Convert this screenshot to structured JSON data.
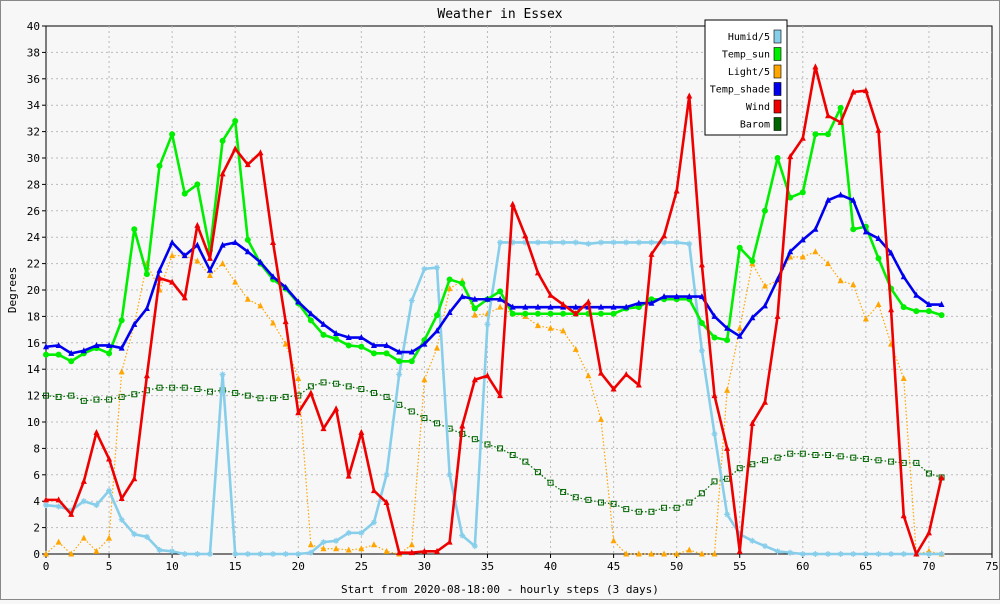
{
  "chart_data": {
    "type": "line",
    "title": "Weather in Essex",
    "xlabel": "Start from 2020-08-18:00 - hourly steps (3 days)",
    "ylabel": "Degrees",
    "xlim": [
      0,
      75
    ],
    "ylim": [
      0,
      40
    ],
    "x_ticks": [
      "0",
      "5",
      "10",
      "15",
      "20",
      "25",
      "30",
      "35",
      "40",
      "45",
      "50",
      "55",
      "60",
      "65",
      "70",
      "75"
    ],
    "y_ticks": [
      "0",
      "2",
      "4",
      "6",
      "8",
      "10",
      "12",
      "14",
      "16",
      "18",
      "20",
      "22",
      "24",
      "26",
      "28",
      "30",
      "32",
      "34",
      "36",
      "38",
      "40"
    ],
    "grid": true,
    "legend_position": "top-right",
    "x": [
      0,
      1,
      2,
      3,
      4,
      5,
      6,
      7,
      8,
      9,
      10,
      11,
      12,
      13,
      14,
      15,
      16,
      17,
      18,
      19,
      20,
      21,
      22,
      23,
      24,
      25,
      26,
      27,
      28,
      29,
      30,
      31,
      32,
      33,
      34,
      35,
      36,
      37,
      38,
      39,
      40,
      41,
      42,
      43,
      44,
      45,
      46,
      47,
      48,
      49,
      50,
      51,
      52,
      53,
      54,
      55,
      56,
      57,
      58,
      59,
      60,
      61,
      62,
      63,
      64,
      65,
      66,
      67,
      68,
      69,
      70,
      71
    ],
    "series": [
      {
        "name": "Humid/5",
        "color": "#87ceeb",
        "marker": "star",
        "dotted": false,
        "values": [
          3.7,
          3.6,
          3.3,
          4.0,
          3.7,
          4.8,
          2.6,
          1.5,
          1.3,
          0.3,
          0.2,
          0.0,
          0.0,
          0.0,
          13.6,
          0.0,
          0.0,
          0.0,
          0.0,
          0.0,
          0.0,
          0.1,
          0.9,
          1.0,
          1.6,
          1.6,
          2.4,
          6.0,
          13.6,
          19.2,
          21.6,
          21.7,
          6.0,
          1.4,
          0.6,
          17.4,
          23.6,
          23.6,
          23.6,
          23.6,
          23.6,
          23.6,
          23.6,
          23.5,
          23.6,
          23.6,
          23.6,
          23.6,
          23.6,
          23.6,
          23.6,
          23.5,
          15.4,
          9.1,
          3.0,
          1.5,
          1.0,
          0.6,
          0.2,
          0.1,
          0.0,
          0.0,
          0.0,
          0.0,
          0.0,
          0.0,
          0.0,
          0.0,
          0.0,
          0.0,
          0.0,
          0.0
        ]
      },
      {
        "name": "Temp_sun",
        "color": "#00ee00",
        "marker": "circle",
        "dotted": false,
        "values": [
          15.1,
          15.1,
          14.6,
          15.2,
          15.6,
          15.2,
          17.7,
          24.6,
          21.2,
          29.4,
          31.8,
          27.3,
          28.0,
          23.0,
          31.3,
          32.8,
          23.8,
          22.0,
          20.8,
          20.1,
          19.0,
          17.7,
          16.6,
          16.3,
          15.8,
          15.7,
          15.2,
          15.2,
          14.6,
          14.6,
          16.2,
          18.1,
          20.8,
          20.5,
          18.6,
          19.3,
          19.9,
          18.2,
          18.2,
          18.2,
          18.2,
          18.2,
          18.2,
          18.2,
          18.2,
          18.2,
          18.6,
          18.7,
          19.3,
          19.3,
          19.3,
          19.3,
          17.5,
          16.4,
          16.2,
          23.2,
          22.2,
          26.0,
          30.0,
          27.0,
          27.4,
          31.8,
          31.8,
          33.8,
          24.6,
          24.8,
          22.4,
          20.1,
          18.7,
          18.4,
          18.4,
          18.1
        ]
      },
      {
        "name": "Light/5",
        "color": "#ffa500",
        "marker": "triangle",
        "dotted": true,
        "values": [
          0.0,
          0.9,
          0.0,
          1.2,
          0.2,
          1.2,
          13.8,
          17.4,
          22.0,
          20.0,
          22.6,
          22.6,
          22.2,
          21.1,
          22.0,
          20.6,
          19.3,
          18.8,
          17.5,
          15.9,
          13.3,
          0.7,
          0.4,
          0.4,
          0.3,
          0.4,
          0.7,
          0.2,
          0.0,
          0.7,
          13.2,
          15.6,
          20.1,
          20.7,
          18.1,
          18.2,
          18.7,
          18.2,
          18.0,
          17.3,
          17.1,
          16.9,
          15.5,
          13.5,
          10.2,
          1.0,
          0.0,
          0.0,
          0.0,
          0.0,
          0.0,
          0.3,
          0.0,
          0.0,
          12.4,
          17.1,
          22.0,
          20.3,
          20.7,
          22.5,
          22.5,
          22.9,
          22.0,
          20.7,
          20.4,
          17.8,
          18.9,
          15.9,
          13.3,
          0.0,
          0.2,
          0.0
        ]
      },
      {
        "name": "Temp_shade",
        "color": "#0000ee",
        "marker": "up-triangle",
        "dotted": false,
        "values": [
          15.7,
          15.8,
          15.2,
          15.4,
          15.8,
          15.8,
          15.6,
          17.4,
          18.6,
          21.5,
          23.6,
          22.6,
          23.4,
          21.5,
          23.4,
          23.6,
          22.9,
          22.1,
          21.0,
          20.2,
          19.1,
          18.2,
          17.4,
          16.7,
          16.4,
          16.4,
          15.8,
          15.8,
          15.3,
          15.3,
          15.9,
          16.9,
          18.3,
          19.5,
          19.3,
          19.3,
          19.3,
          18.7,
          18.7,
          18.7,
          18.7,
          18.7,
          18.7,
          18.7,
          18.7,
          18.7,
          18.7,
          19.0,
          19.0,
          19.5,
          19.5,
          19.5,
          19.5,
          18.0,
          17.1,
          16.5,
          17.9,
          18.8,
          20.8,
          22.9,
          23.8,
          24.6,
          26.8,
          27.2,
          26.8,
          24.4,
          23.9,
          22.8,
          21.0,
          19.6,
          18.9,
          18.9
        ]
      },
      {
        "name": "Wind",
        "color": "#ee0000",
        "marker": "up-triangle",
        "dotted": false,
        "values": [
          4.1,
          4.1,
          3.0,
          5.5,
          9.2,
          7.2,
          4.2,
          5.7,
          13.5,
          20.9,
          20.6,
          19.4,
          24.9,
          22.4,
          28.8,
          30.7,
          29.5,
          30.4,
          23.6,
          17.6,
          10.7,
          12.2,
          9.5,
          11.0,
          5.9,
          9.2,
          4.8,
          3.9,
          0.1,
          0.1,
          0.2,
          0.2,
          0.9,
          9.7,
          13.2,
          13.5,
          12.0,
          26.5,
          24.1,
          21.3,
          19.6,
          18.9,
          18.2,
          19.1,
          13.7,
          12.5,
          13.6,
          12.8,
          22.7,
          24.1,
          27.5,
          34.7,
          21.9,
          12.0,
          8.0,
          0.2,
          9.9,
          11.5,
          18.0,
          30.1,
          31.5,
          36.9,
          33.2,
          32.7,
          35.0,
          35.1,
          32.1,
          18.5,
          2.9,
          0.0,
          1.6,
          5.8
        ]
      },
      {
        "name": "Barom",
        "color": "#006400",
        "marker": "square",
        "dotted": true,
        "values": [
          12.0,
          11.9,
          12.0,
          11.6,
          11.7,
          11.7,
          11.9,
          12.1,
          12.4,
          12.6,
          12.6,
          12.6,
          12.5,
          12.3,
          12.4,
          12.2,
          12.0,
          11.8,
          11.8,
          11.9,
          12.0,
          12.7,
          13.0,
          12.9,
          12.7,
          12.5,
          12.2,
          11.9,
          11.3,
          10.8,
          10.3,
          9.9,
          9.5,
          9.1,
          8.7,
          8.3,
          8.0,
          7.5,
          7.0,
          6.2,
          5.4,
          4.7,
          4.3,
          4.1,
          3.9,
          3.8,
          3.4,
          3.2,
          3.2,
          3.5,
          3.5,
          3.9,
          4.6,
          5.5,
          5.7,
          6.5,
          6.8,
          7.1,
          7.3,
          7.6,
          7.6,
          7.5,
          7.5,
          7.4,
          7.3,
          7.2,
          7.1,
          7.0,
          6.9,
          6.9,
          6.1,
          5.8
        ]
      }
    ]
  }
}
